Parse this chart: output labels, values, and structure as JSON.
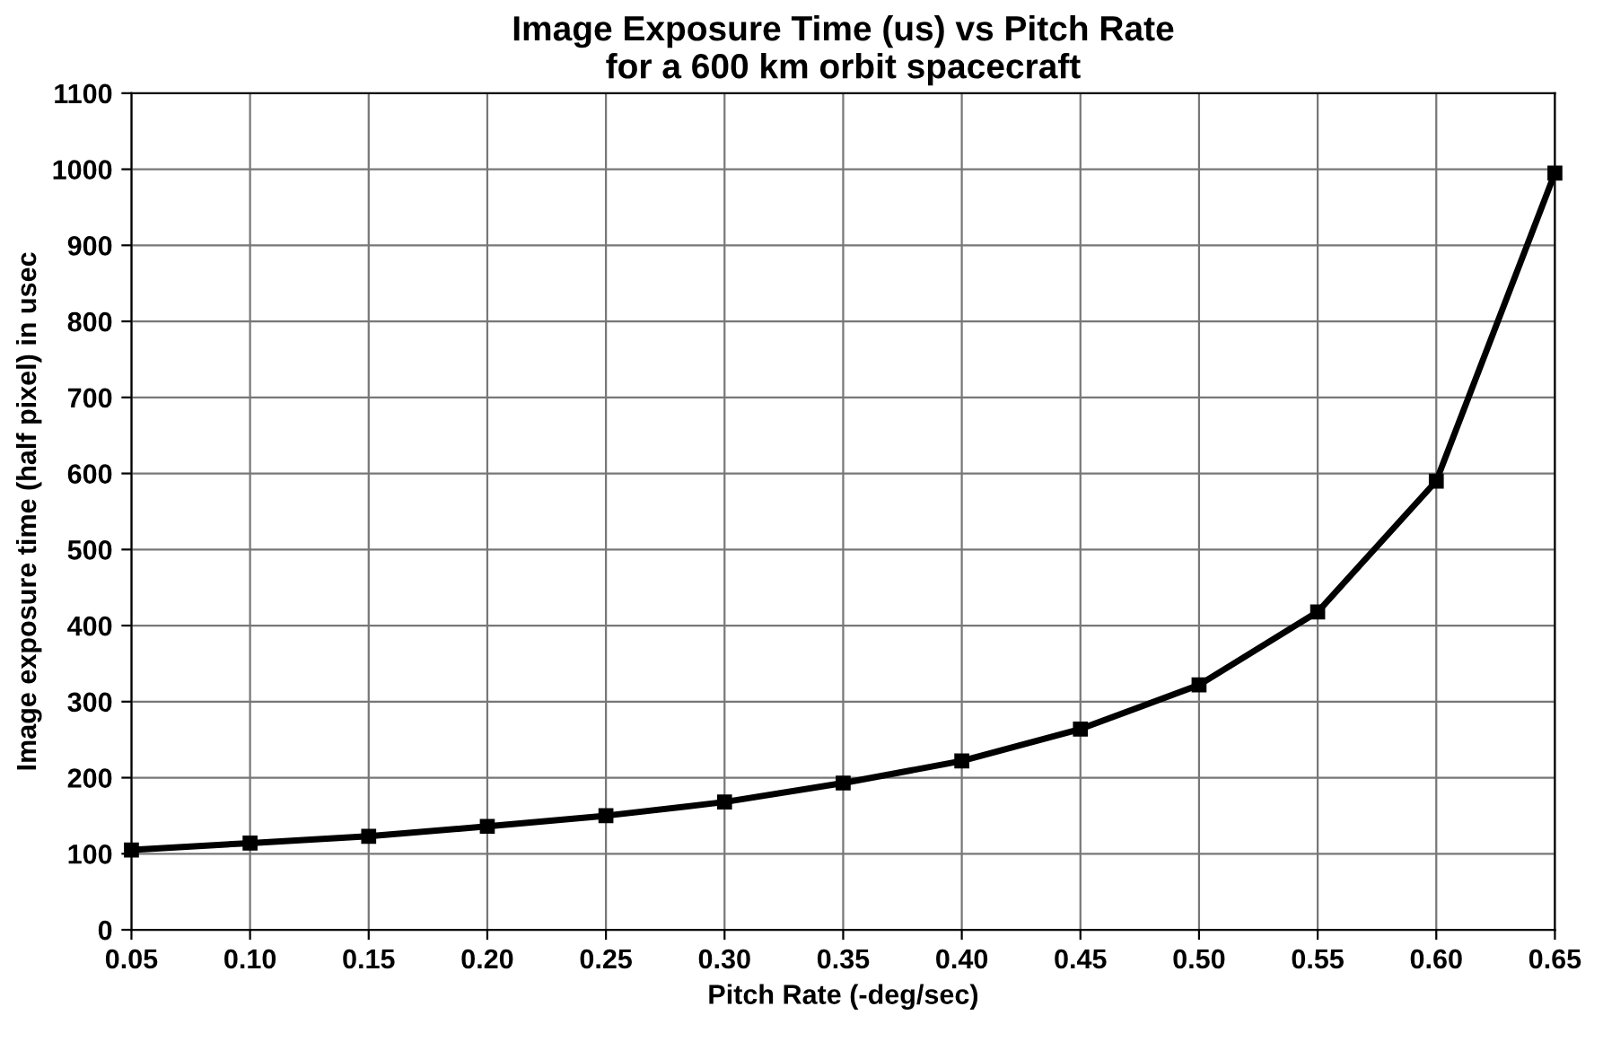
{
  "chart_data": {
    "type": "line",
    "title": "Image Exposure Time (us) vs Pitch Rate\nfor a 600 km orbit spacecraft",
    "xlabel": "Pitch Rate (-deg/sec)",
    "ylabel": "Image exposure time (half pixel) in usec",
    "x": [
      0.05,
      0.1,
      0.15,
      0.2,
      0.25,
      0.3,
      0.35,
      0.4,
      0.45,
      0.5,
      0.55,
      0.6,
      0.65
    ],
    "series": [
      {
        "color": "#000000",
        "values": [
          105,
          114,
          123,
          136,
          150,
          168,
          193,
          222,
          264,
          322,
          418,
          590,
          995
        ]
      }
    ],
    "xlim": [
      0.05,
      0.65
    ],
    "xticks": [
      {
        "value": 0.05,
        "label": "0.05"
      },
      {
        "value": 0.1,
        "label": "0.10"
      },
      {
        "value": 0.15,
        "label": "0.15"
      },
      {
        "value": 0.2,
        "label": "0.20"
      },
      {
        "value": 0.25,
        "label": "0.25"
      },
      {
        "value": 0.3,
        "label": "0.30"
      },
      {
        "value": 0.35,
        "label": "0.35"
      },
      {
        "value": 0.4,
        "label": "0.40"
      },
      {
        "value": 0.45,
        "label": "0.45"
      },
      {
        "value": 0.5,
        "label": "0.50"
      },
      {
        "value": 0.55,
        "label": "0.55"
      },
      {
        "value": 0.6,
        "label": "0.60"
      },
      {
        "value": 0.65,
        "label": "0.65"
      }
    ],
    "ylim": [
      0,
      1100
    ],
    "yticks": [
      0,
      100,
      200,
      300,
      400,
      500,
      600,
      700,
      800,
      900,
      1000,
      1100
    ],
    "grid": true,
    "marker": "square",
    "line_style": "solid",
    "legend": false
  }
}
